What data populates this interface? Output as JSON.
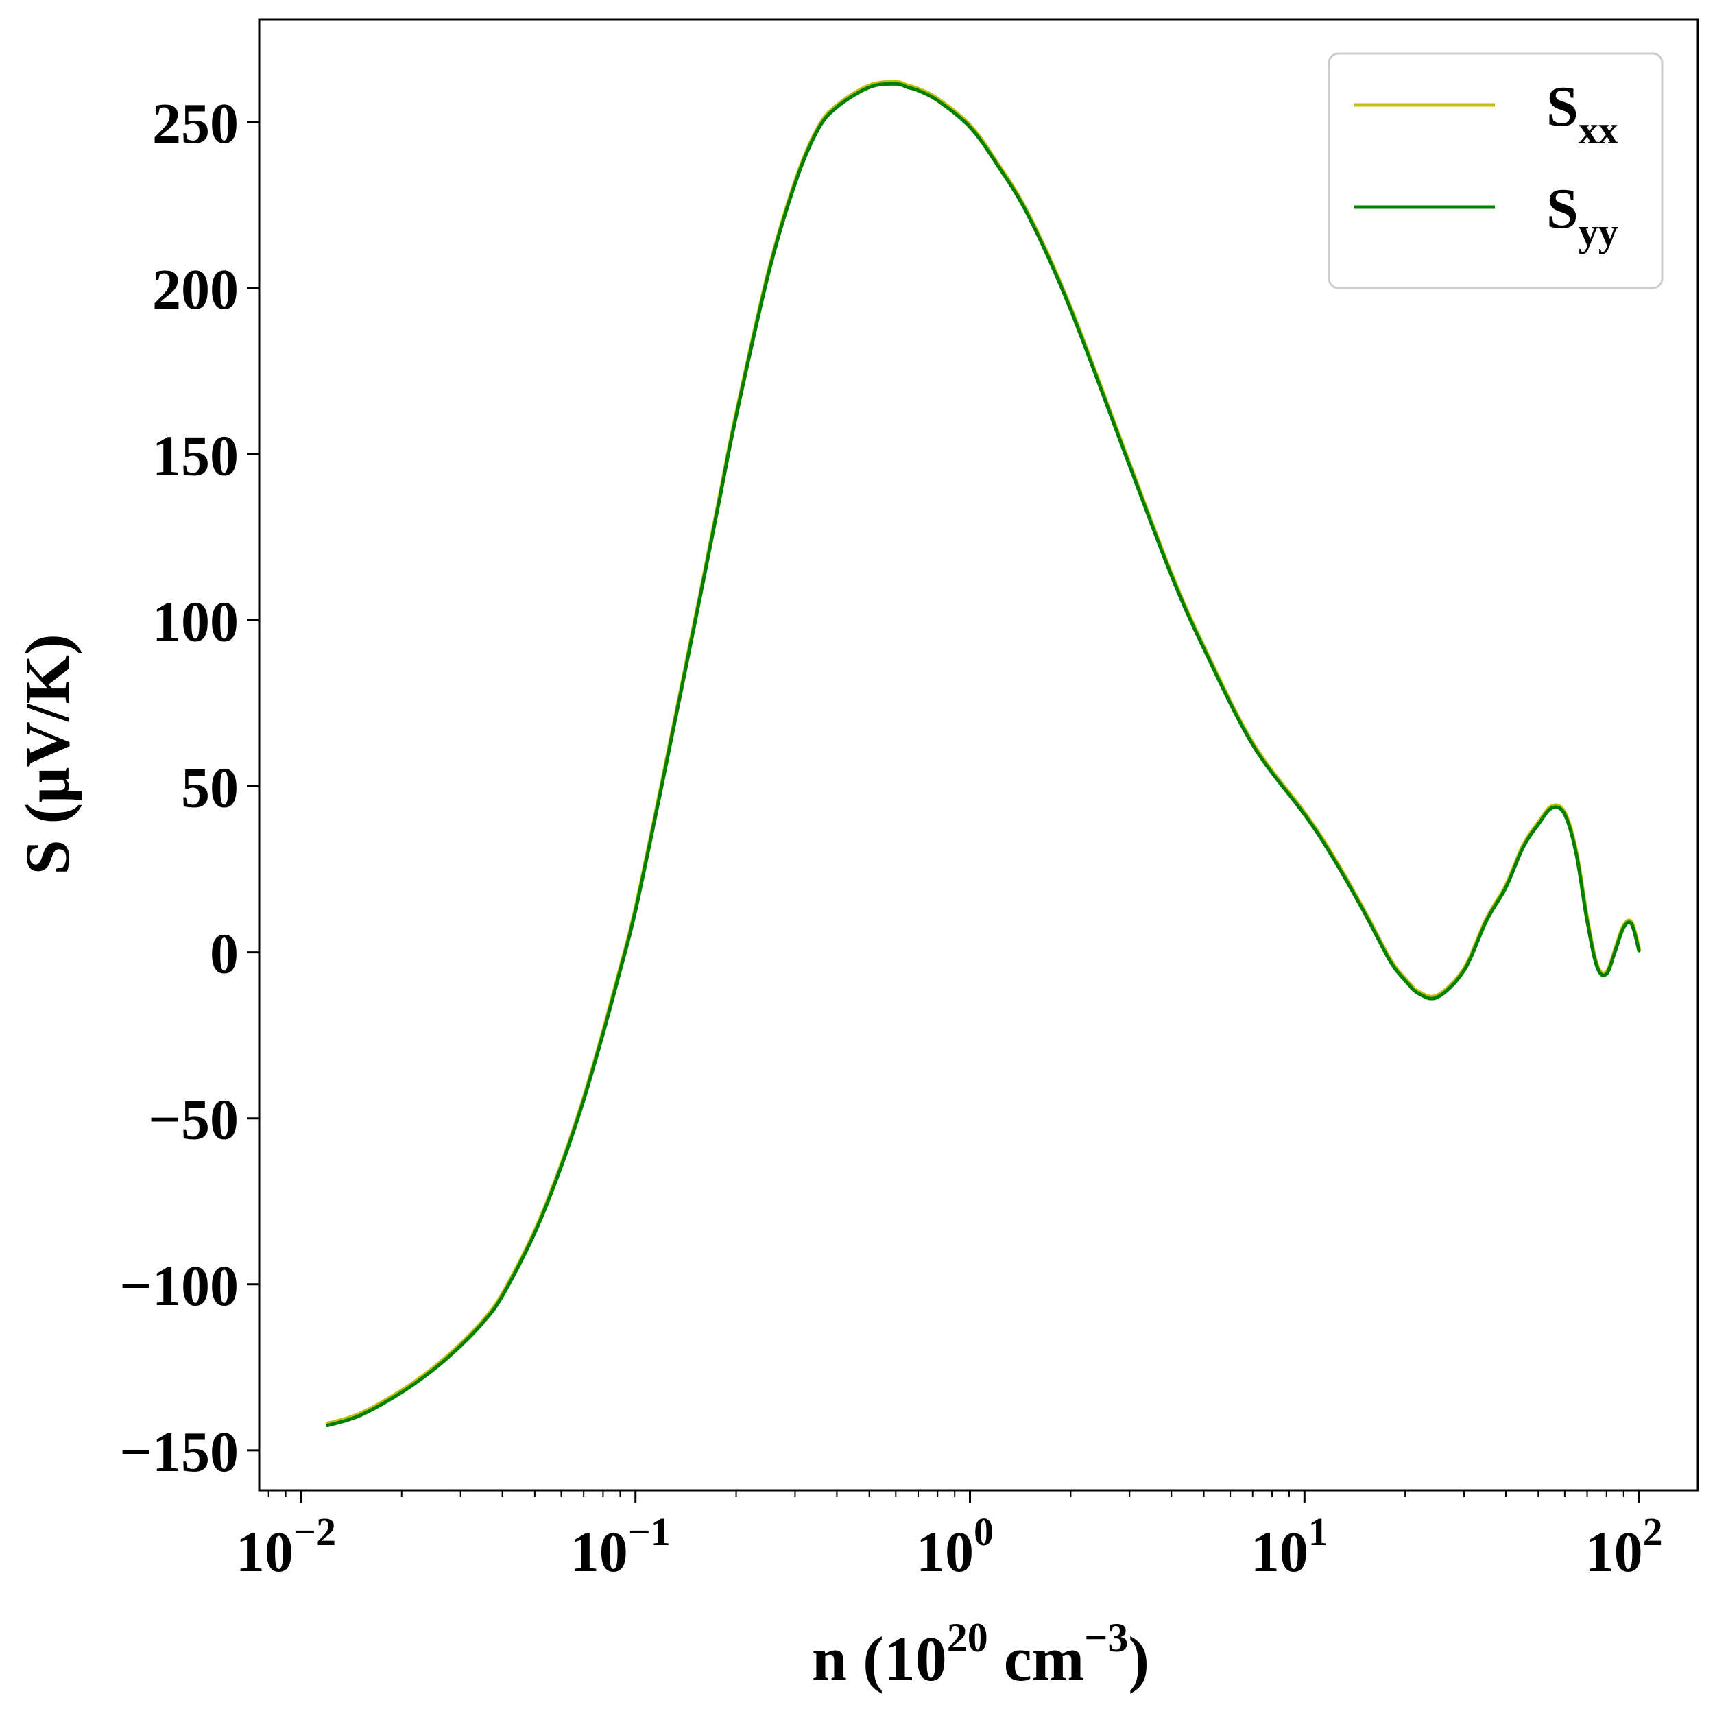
{
  "chart_data": {
    "type": "line",
    "xscale": "log",
    "xlim": [
      0.0075,
      150
    ],
    "ylim": [
      -162,
      281
    ],
    "xticks": [
      {
        "value": 0.01,
        "base": "10",
        "exp": "−2"
      },
      {
        "value": 0.1,
        "base": "10",
        "exp": "−1"
      },
      {
        "value": 1,
        "base": "10",
        "exp": "0"
      },
      {
        "value": 10,
        "base": "10",
        "exp": "1"
      },
      {
        "value": 100,
        "base": "10",
        "exp": "2"
      }
    ],
    "yticks": [
      {
        "value": 250,
        "label": "250"
      },
      {
        "value": 200,
        "label": "200"
      },
      {
        "value": 150,
        "label": "150"
      },
      {
        "value": 100,
        "label": "100"
      },
      {
        "value": 50,
        "label": "50"
      },
      {
        "value": 0,
        "label": "0"
      },
      {
        "value": -50,
        "label": "−50"
      },
      {
        "value": -100,
        "label": "−100"
      },
      {
        "value": -150,
        "label": "−150"
      }
    ],
    "xlabel": {
      "prefix": "n (10",
      "sup1": "20",
      "mid": " cm",
      "sup2": "−3",
      "suffix": ")"
    },
    "ylabel": "S (μV/K)",
    "legend_position": "top-right",
    "grid": false,
    "series": [
      {
        "name": "xx",
        "label_main": "S",
        "label_sub": "xx",
        "color": "#bfbf00",
        "x": [
          0.012,
          0.015,
          0.02,
          0.025,
          0.03,
          0.035,
          0.04,
          0.05,
          0.06,
          0.07,
          0.08,
          0.09,
          0.1,
          0.12,
          0.14,
          0.16,
          0.18,
          0.2,
          0.25,
          0.3,
          0.35,
          0.4,
          0.5,
          0.6,
          0.65,
          0.7,
          0.8,
          1.0,
          1.2,
          1.5,
          2.0,
          3.0,
          4.0,
          5.0,
          7.0,
          10.0,
          12.0,
          15.0,
          18.0,
          20.0,
          22.0,
          25.0,
          30.0,
          35.0,
          40.0,
          45.0,
          50.0,
          55.0,
          60.0,
          65.0,
          70.0,
          75.0,
          80.0,
          85.0,
          90.0,
          95.0,
          100.0
        ],
        "values": [
          -142,
          -139,
          -132,
          -125,
          -118,
          -111,
          -103,
          -84,
          -64,
          -44,
          -24,
          -5,
          13,
          51,
          84,
          113,
          139,
          162,
          205,
          232,
          248,
          255,
          261,
          262,
          261,
          260,
          257,
          249,
          238,
          222,
          194,
          147,
          114,
          92,
          63,
          42,
          30,
          13,
          -2,
          -8,
          -12,
          -13,
          -5,
          10,
          20,
          32,
          39,
          44,
          42,
          30,
          10,
          -4,
          -6,
          1,
          8,
          9,
          1
        ]
      },
      {
        "name": "yy",
        "label_main": "S",
        "label_sub": "yy",
        "color": "#008000",
        "x": [
          0.012,
          0.015,
          0.02,
          0.025,
          0.03,
          0.035,
          0.04,
          0.05,
          0.06,
          0.07,
          0.08,
          0.09,
          0.1,
          0.12,
          0.14,
          0.16,
          0.18,
          0.2,
          0.25,
          0.3,
          0.35,
          0.4,
          0.5,
          0.6,
          0.65,
          0.7,
          0.8,
          1.0,
          1.2,
          1.5,
          2.0,
          3.0,
          4.0,
          5.0,
          7.0,
          10.0,
          12.0,
          15.0,
          18.0,
          20.0,
          22.0,
          25.0,
          30.0,
          35.0,
          40.0,
          45.0,
          50.0,
          55.0,
          60.0,
          65.0,
          70.0,
          75.0,
          80.0,
          85.0,
          90.0,
          95.0,
          100.0
        ],
        "values": [
          -142.5,
          -139.5,
          -132.5,
          -125.5,
          -118.5,
          -111.5,
          -103.5,
          -84.5,
          -64.5,
          -44.5,
          -24.5,
          -5.5,
          12.5,
          50.5,
          83.5,
          112.5,
          138.5,
          161.5,
          204.5,
          231.5,
          247.5,
          254.5,
          260.5,
          261.5,
          260.5,
          259.5,
          256.5,
          248.5,
          237.5,
          221.5,
          193.5,
          146.5,
          113.5,
          91.5,
          62.5,
          41.5,
          29.5,
          12.5,
          -2.5,
          -8.5,
          -12.5,
          -13.5,
          -5.5,
          9.5,
          19.5,
          31.5,
          38.5,
          43.5,
          41.5,
          29.5,
          9.5,
          -4.5,
          -6.5,
          0.5,
          7.5,
          8.5,
          0.5
        ]
      }
    ]
  }
}
